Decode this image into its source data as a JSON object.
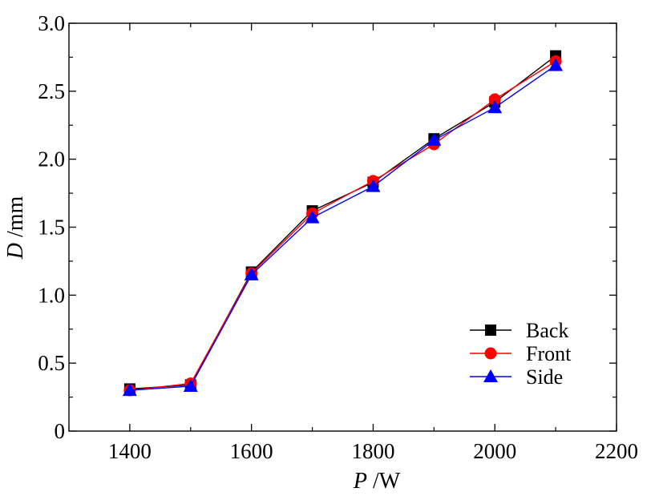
{
  "chart_data": {
    "type": "line",
    "xlabel": {
      "var": "P",
      "unit": " /W"
    },
    "ylabel": {
      "var": "D",
      "unit": " /mm"
    },
    "xlim": [
      1300,
      2200
    ],
    "ylim": [
      0,
      3.0
    ],
    "xticks": [
      1400,
      1600,
      1800,
      2000,
      2200
    ],
    "xtick_labels": [
      "1400",
      "1600",
      "1800",
      "2000",
      "2200"
    ],
    "yticks": [
      0,
      0.5,
      1.0,
      1.5,
      2.0,
      2.5,
      3.0
    ],
    "ytick_labels": [
      "0",
      "0.5",
      "1.0",
      "1.5",
      "2.0",
      "2.5",
      "3.0"
    ],
    "x": [
      1400,
      1500,
      1600,
      1700,
      1800,
      1900,
      2000,
      2100
    ],
    "series": [
      {
        "name": "Back",
        "color": "#000000",
        "marker": "square",
        "values": [
          0.31,
          0.34,
          1.17,
          1.62,
          1.83,
          2.15,
          2.42,
          2.76
        ]
      },
      {
        "name": "Front",
        "color": "#ff0000",
        "marker": "circle",
        "values": [
          0.3,
          0.35,
          1.16,
          1.6,
          1.84,
          2.11,
          2.44,
          2.72
        ]
      },
      {
        "name": "Side",
        "color": "#0000ff",
        "marker": "triangle",
        "values": [
          0.3,
          0.33,
          1.15,
          1.57,
          1.8,
          2.14,
          2.38,
          2.69
        ]
      }
    ],
    "grid": false,
    "legend_position": "bottom-right"
  }
}
